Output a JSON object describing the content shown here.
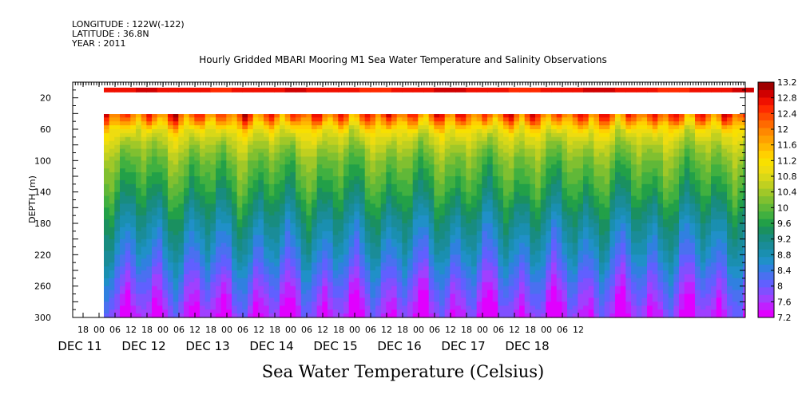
{
  "header": {
    "longitude": "LONGITUDE : 122W(-122)",
    "latitude": "LATITUDE : 36.8N",
    "year": "YEAR : 2011"
  },
  "title": "Hourly Gridded MBARI Mooring M1 Sea Water Temperature and Salinity Observations",
  "bottom_title": "Sea Water Temperature (Celsius)",
  "chart_data": {
    "type": "heatmap",
    "title": "Hourly Gridded MBARI Mooring M1 Sea Water Temperature and Salinity Observations",
    "xlabel": "",
    "ylabel": "DEPTH (m)",
    "y_reversed": true,
    "ylim": [
      0,
      300
    ],
    "y_ticks": [
      20,
      60,
      100,
      140,
      180,
      220,
      260,
      300
    ],
    "x_hour_ticks": [
      "18",
      "00",
      "06",
      "12",
      "18",
      "00",
      "06",
      "12",
      "18",
      "00",
      "06",
      "12",
      "18",
      "00",
      "06",
      "12",
      "18",
      "00",
      "06",
      "12",
      "18",
      "00",
      "06",
      "12",
      "18",
      "00",
      "06",
      "12",
      "18",
      "00",
      "06",
      "12"
    ],
    "x_day_labels": [
      "DEC 11",
      "DEC 12",
      "DEC 13",
      "DEC 14",
      "DEC 15",
      "DEC 16",
      "DEC 17",
      "DEC 18"
    ],
    "colorbar": {
      "label": "Sea Water Temperature (Celsius)",
      "levels": [
        7.2,
        7.4,
        7.6,
        7.8,
        8.0,
        8.2,
        8.4,
        8.6,
        8.8,
        9.0,
        9.2,
        9.4,
        9.6,
        9.8,
        10.0,
        10.2,
        10.4,
        10.6,
        10.8,
        11.0,
        11.2,
        11.4,
        11.6,
        11.8,
        12.0,
        12.2,
        12.4,
        12.6,
        12.8,
        13.0,
        13.2
      ],
      "tick_labels": [
        "7.2",
        "7.6",
        "8",
        "8.4",
        "8.8",
        "9.2",
        "9.6",
        "10",
        "10.4",
        "10.8",
        "11.2",
        "11.6",
        "12",
        "12.4",
        "12.8",
        "13.2"
      ],
      "colors": [
        "#e000ff",
        "#c020ff",
        "#a040ff",
        "#8050ff",
        "#6060ff",
        "#4a70f0",
        "#3080e0",
        "#2090c8",
        "#1a8fb0",
        "#1a8c98",
        "#188c80",
        "#1a9060",
        "#22a048",
        "#40b040",
        "#60b838",
        "#80c030",
        "#a0c828",
        "#c0d020",
        "#d8d818",
        "#eedc10",
        "#f8e000",
        "#ffd000",
        "#ffb800",
        "#ffa000",
        "#ff8800",
        "#ff6a00",
        "#ff4a00",
        "#ff2a00",
        "#f01000",
        "#d00000",
        "#a00000"
      ]
    },
    "data_start": "2011-12-12 00:00",
    "gap_depth_range": [
      10,
      40
    ],
    "surface_series": [
      {
        "time": "2011-12-12 00:00",
        "depth": 10,
        "temperature": 12.9
      },
      {
        "time": "2011-12-15 00:00",
        "depth": 10,
        "temperature": 13.0
      },
      {
        "time": "2011-12-18 12:00",
        "depth": 10,
        "temperature": 12.9
      }
    ],
    "depth_profiles": [
      {
        "depth": 40,
        "temperature": 12.0
      },
      {
        "depth": 60,
        "temperature": 11.0
      },
      {
        "depth": 80,
        "temperature": 10.6
      },
      {
        "depth": 100,
        "temperature": 10.2
      },
      {
        "depth": 140,
        "temperature": 9.7
      },
      {
        "depth": 180,
        "temperature": 9.1
      },
      {
        "depth": 220,
        "temperature": 8.6
      },
      {
        "depth": 260,
        "temperature": 8.0
      },
      {
        "depth": 300,
        "temperature": 7.5
      }
    ]
  }
}
